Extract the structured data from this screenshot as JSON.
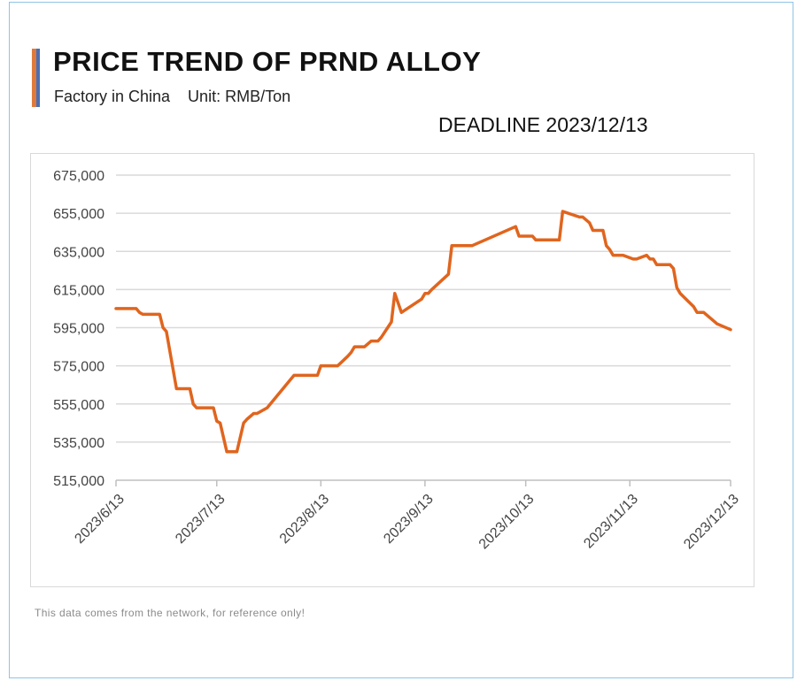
{
  "header": {
    "title": "PRICE TREND OF PRND ALLOY",
    "subtitle": "Factory in China    Unit: RMB/Ton",
    "deadline": "DEADLINE 2023/12/13"
  },
  "footnote": "This data comes from the network, for reference only!",
  "colors": {
    "line": "#e0651e",
    "grid": "#d9d9d9",
    "axis": "#bfbfbf",
    "text": "#444444"
  },
  "chart_data": {
    "type": "line",
    "title": "PRICE TREND OF PRND ALLOY",
    "xlabel": "",
    "ylabel": "",
    "ylim": [
      515000,
      675000
    ],
    "y_ticks": [
      "515,000",
      "535,000",
      "555,000",
      "575,000",
      "595,000",
      "615,000",
      "635,000",
      "655,000",
      "675,000"
    ],
    "y_tick_values": [
      515000,
      535000,
      555000,
      575000,
      595000,
      615000,
      635000,
      655000,
      675000
    ],
    "x_ticks": [
      "2023/6/13",
      "2023/7/13",
      "2023/8/13",
      "2023/9/13",
      "2023/10/13",
      "2023/11/13",
      "2023/12/13"
    ],
    "x_tick_values": [
      "2023-06-13",
      "2023-07-13",
      "2023-08-13",
      "2023-09-13",
      "2023-10-13",
      "2023-11-13",
      "2023-12-13"
    ],
    "grid": "horizontal",
    "legend": "none",
    "series": [
      {
        "x": [
          "2023-06-13",
          "2023-06-19",
          "2023-06-20",
          "2023-06-21",
          "2023-06-26",
          "2023-06-27",
          "2023-06-28",
          "2023-07-01",
          "2023-07-02",
          "2023-07-05",
          "2023-07-06",
          "2023-07-07",
          "2023-07-12",
          "2023-07-13",
          "2023-07-14",
          "2023-07-16",
          "2023-07-19",
          "2023-07-21",
          "2023-07-22",
          "2023-07-24",
          "2023-07-25",
          "2023-07-28",
          "2023-08-05",
          "2023-08-06",
          "2023-08-08",
          "2023-08-09",
          "2023-08-10",
          "2023-08-11",
          "2023-08-12",
          "2023-08-13",
          "2023-08-16",
          "2023-08-17",
          "2023-08-18",
          "2023-08-21",
          "2023-08-22",
          "2023-08-23",
          "2023-08-24",
          "2023-08-25",
          "2023-08-26",
          "2023-08-28",
          "2023-08-30",
          "2023-08-31",
          "2023-09-03",
          "2023-09-04",
          "2023-09-06",
          "2023-09-12",
          "2023-09-13",
          "2023-09-14",
          "2023-09-15",
          "2023-09-20",
          "2023-09-21",
          "2023-09-27",
          "2023-10-10",
          "2023-10-11",
          "2023-10-14",
          "2023-10-15",
          "2023-10-16",
          "2023-10-22",
          "2023-10-23",
          "2023-10-24",
          "2023-10-29",
          "2023-10-30",
          "2023-11-01",
          "2023-11-02",
          "2023-11-03",
          "2023-11-04",
          "2023-11-05",
          "2023-11-06",
          "2023-11-07",
          "2023-11-08",
          "2023-11-09",
          "2023-11-10",
          "2023-11-11",
          "2023-11-14",
          "2023-11-15",
          "2023-11-18",
          "2023-11-19",
          "2023-11-20",
          "2023-11-21",
          "2023-11-25",
          "2023-11-26",
          "2023-11-27",
          "2023-11-28",
          "2023-12-02",
          "2023-12-03",
          "2023-12-04",
          "2023-12-05",
          "2023-12-09",
          "2023-12-13"
        ],
        "values": [
          605000,
          605000,
          603000,
          602000,
          602000,
          595000,
          593000,
          563000,
          563000,
          563000,
          555000,
          553000,
          553000,
          546000,
          545000,
          530000,
          530000,
          545000,
          547000,
          550000,
          550000,
          553000,
          570000,
          570000,
          570000,
          570000,
          570000,
          570000,
          570000,
          575000,
          575000,
          575000,
          575000,
          580000,
          582000,
          585000,
          585000,
          585000,
          585000,
          588000,
          588000,
          590000,
          598000,
          613000,
          603000,
          610000,
          613000,
          613000,
          615000,
          623000,
          638000,
          638000,
          648000,
          643000,
          643000,
          643000,
          641000,
          641000,
          641000,
          656000,
          653000,
          653000,
          650000,
          646000,
          646000,
          646000,
          646000,
          638000,
          636000,
          633000,
          633000,
          633000,
          633000,
          631000,
          631000,
          633000,
          631000,
          631000,
          628000,
          628000,
          626000,
          616000,
          613000,
          606000,
          603000,
          603000,
          603000,
          597000,
          594000
        ]
      }
    ]
  }
}
